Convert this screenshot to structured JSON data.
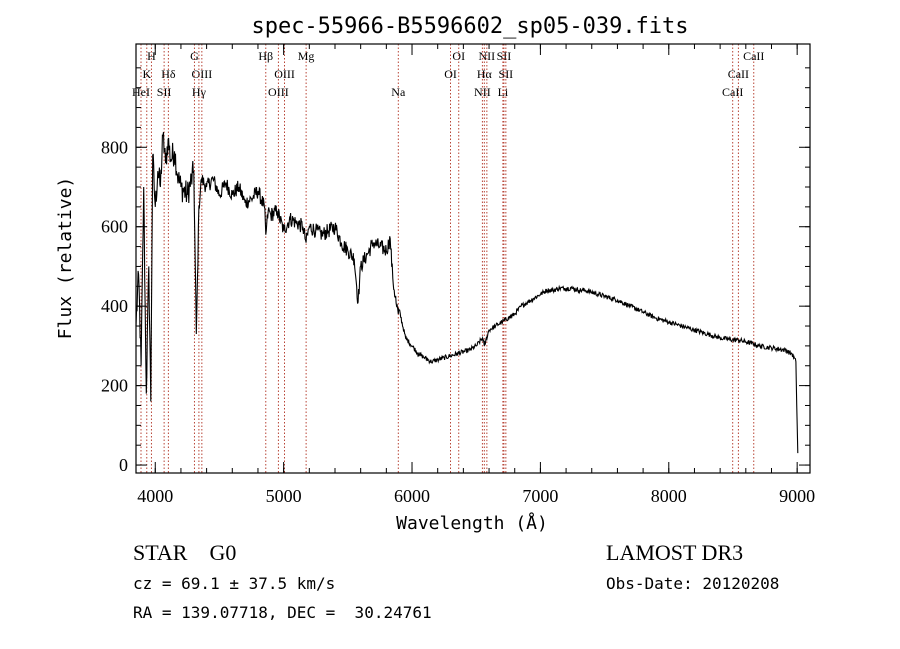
{
  "chart_data": {
    "type": "line",
    "title": "spec-55966-B5596602_sp05-039.fits",
    "xlabel": "Wavelength (Å)",
    "ylabel": "Flux (relative)",
    "xlim": [
      3850,
      9100
    ],
    "ylim": [
      -20,
      1060
    ],
    "x_ticks": [
      4000,
      5000,
      6000,
      7000,
      8000,
      9000
    ],
    "y_ticks": [
      0,
      200,
      400,
      600,
      800
    ],
    "series": [
      {
        "name": "flux",
        "x": [
          3850,
          3870,
          3890,
          3910,
          3930,
          3950,
          3965,
          3980,
          4000,
          4020,
          4040,
          4060,
          4080,
          4100,
          4120,
          4150,
          4180,
          4200,
          4250,
          4300,
          4320,
          4340,
          4360,
          4400,
          4450,
          4500,
          4550,
          4600,
          4650,
          4700,
          4750,
          4800,
          4850,
          4861,
          4880,
          4900,
          4950,
          5000,
          5050,
          5100,
          5150,
          5175,
          5200,
          5250,
          5300,
          5350,
          5400,
          5450,
          5500,
          5550,
          5580,
          5600,
          5650,
          5700,
          5750,
          5800,
          5830,
          5850,
          5880,
          5893,
          5900,
          5950,
          6000,
          6050,
          6100,
          6150,
          6200,
          6250,
          6300,
          6350,
          6400,
          6450,
          6500,
          6550,
          6563,
          6600,
          6650,
          6700,
          6750,
          6800,
          6850,
          6900,
          6950,
          7000,
          7050,
          7100,
          7150,
          7200,
          7250,
          7300,
          7350,
          7400,
          7450,
          7500,
          7600,
          7700,
          7800,
          7900,
          8000,
          8100,
          8200,
          8300,
          8400,
          8498,
          8542,
          8600,
          8662,
          8700,
          8800,
          8900,
          8960,
          8990,
          9000,
          9005
        ],
        "values": [
          350,
          480,
          250,
          700,
          180,
          500,
          160,
          780,
          650,
          740,
          700,
          830,
          760,
          820,
          770,
          790,
          720,
          700,
          680,
          740,
          330,
          650,
          720,
          700,
          720,
          680,
          710,
          680,
          700,
          660,
          670,
          690,
          650,
          580,
          640,
          630,
          640,
          590,
          620,
          610,
          600,
          560,
          600,
          590,
          580,
          590,
          600,
          560,
          540,
          520,
          410,
          500,
          530,
          560,
          550,
          540,
          570,
          470,
          400,
          380,
          390,
          320,
          300,
          280,
          270,
          260,
          265,
          270,
          275,
          280,
          285,
          290,
          300,
          320,
          300,
          340,
          350,
          360,
          370,
          380,
          400,
          410,
          420,
          430,
          440,
          440,
          445,
          445,
          445,
          440,
          440,
          435,
          430,
          425,
          415,
          400,
          385,
          370,
          360,
          350,
          340,
          330,
          320,
          315,
          315,
          310,
          305,
          300,
          295,
          290,
          280,
          260,
          100,
          30
        ]
      }
    ],
    "lines": [
      {
        "label": "H",
        "x": 3970,
        "row": 0
      },
      {
        "label": "K",
        "x": 3934,
        "row": 1
      },
      {
        "label": "HeI",
        "x": 3889,
        "row": 2
      },
      {
        "label": "Hδ",
        "x": 4102,
        "row": 1
      },
      {
        "label": "SII",
        "x": 4069,
        "row": 2
      },
      {
        "label": "G",
        "x": 4305,
        "row": 0
      },
      {
        "label": "OIII",
        "x": 4363,
        "row": 1
      },
      {
        "label": "Hγ",
        "x": 4340,
        "row": 2
      },
      {
        "label": "Hβ",
        "x": 4861,
        "row": 0
      },
      {
        "label": "OIII",
        "x": 5007,
        "row": 1
      },
      {
        "label": "OIII",
        "x": 4959,
        "row": 2
      },
      {
        "label": "Mg",
        "x": 5175,
        "row": 0
      },
      {
        "label": "Na",
        "x": 5893,
        "row": 2
      },
      {
        "label": "OI",
        "x": 6364,
        "row": 0
      },
      {
        "label": "OI",
        "x": 6300,
        "row": 1
      },
      {
        "label": "NII",
        "x": 6583,
        "row": 0
      },
      {
        "label": "SII",
        "x": 6716,
        "row": 0
      },
      {
        "label": "Hα",
        "x": 6563,
        "row": 1
      },
      {
        "label": "SII",
        "x": 6731,
        "row": 1
      },
      {
        "label": "NII",
        "x": 6548,
        "row": 2
      },
      {
        "label": "Li",
        "x": 6708,
        "row": 2
      },
      {
        "label": "CaII",
        "x": 8662,
        "row": 0
      },
      {
        "label": "CaII",
        "x": 8542,
        "row": 1
      },
      {
        "label": "CaII",
        "x": 8498,
        "row": 2
      }
    ]
  },
  "info": {
    "class_text": "STAR    G0",
    "cz_text": "cz = 69.1 ± 37.5 km/s",
    "radec_text": "RA = 139.07718, DEC =  30.24761",
    "survey_text": "LAMOST DR3",
    "obsdate_text": "Obs-Date: 20120208"
  },
  "colors": {
    "axis": "#000000",
    "spectrum": "#000000",
    "line_marker": "#b03020"
  }
}
